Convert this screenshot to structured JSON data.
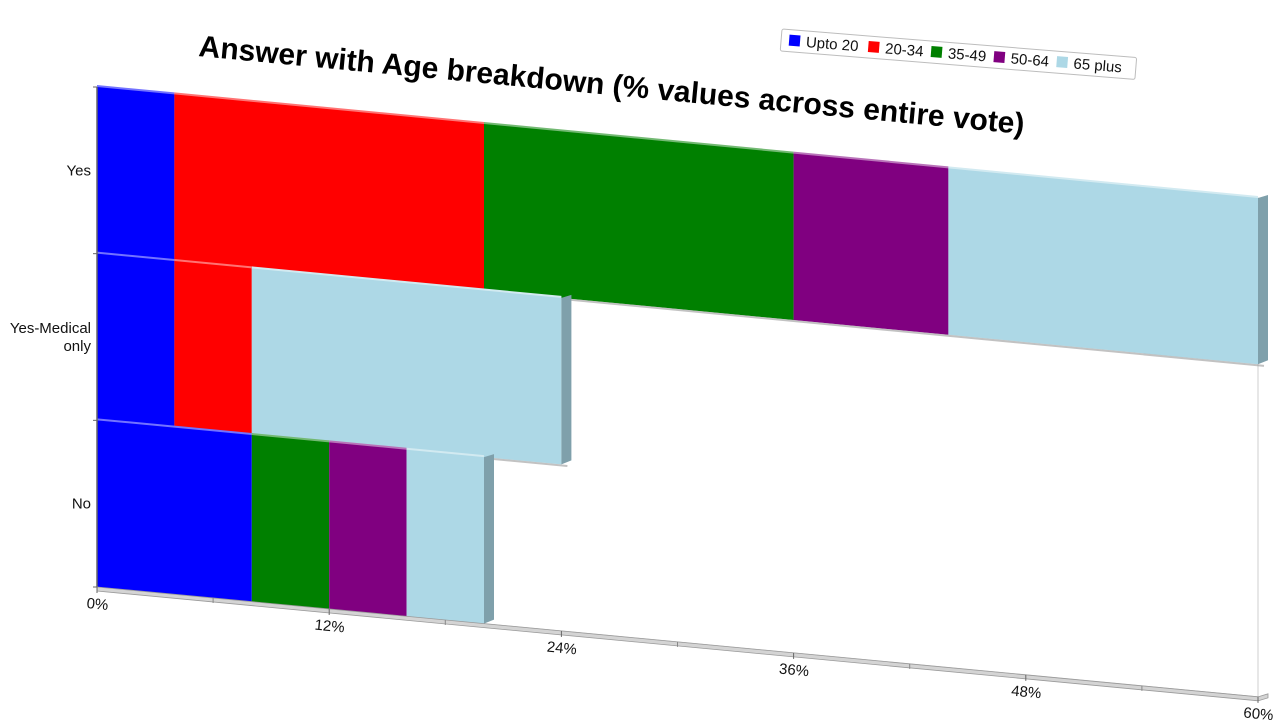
{
  "chart_data": {
    "type": "bar",
    "orientation": "horizontal",
    "stacked": true,
    "three_d": true,
    "title": "Answer with Age breakdown (% values across entire vote)",
    "xlabel": "",
    "ylabel": "",
    "categories": [
      "Yes",
      "Yes-Medical\nonly",
      "No"
    ],
    "x_ticks": [
      "0%",
      "12%",
      "24%",
      "36%",
      "48%",
      "60%"
    ],
    "xlim": [
      0,
      60
    ],
    "legend_position": "top-right",
    "series": [
      {
        "name": "Upto 20",
        "color": "#0000ff",
        "values": [
          4,
          4,
          8
        ]
      },
      {
        "name": "20-34",
        "color": "#ff0000",
        "values": [
          16,
          4,
          0
        ]
      },
      {
        "name": "35-49",
        "color": "#008000",
        "values": [
          16,
          0,
          4
        ]
      },
      {
        "name": "50-64",
        "color": "#800080",
        "values": [
          8,
          0,
          4
        ]
      },
      {
        "name": "65 plus",
        "color": "#add8e6",
        "values": [
          16,
          16,
          4
        ]
      }
    ]
  }
}
